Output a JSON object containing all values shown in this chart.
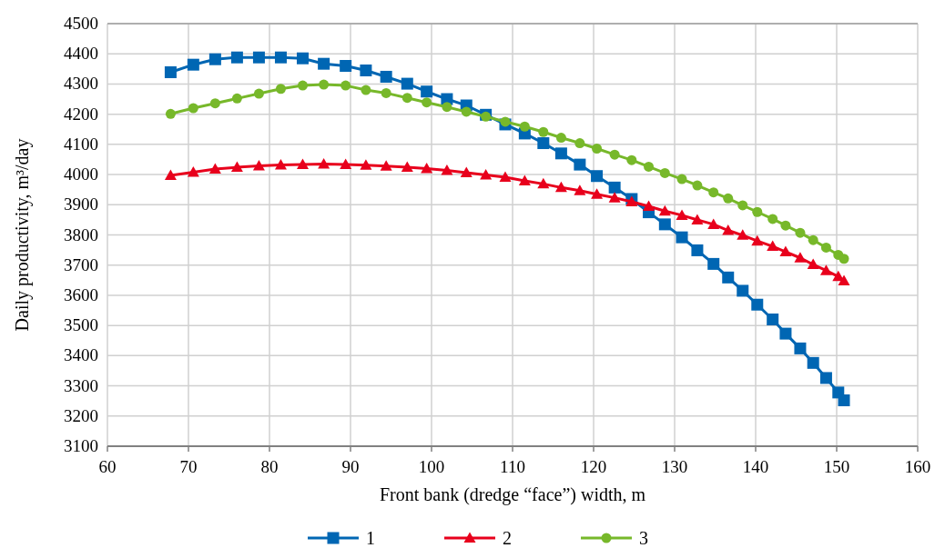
{
  "chart_data": {
    "type": "line",
    "xlabel": "Front bank (dredge “face”) width, m",
    "ylabel": "Daily productivity, m³/day",
    "x": [
      67.8,
      70.6,
      73.3,
      76.0,
      78.7,
      81.4,
      84.1,
      86.7,
      89.4,
      91.9,
      94.4,
      97.0,
      99.4,
      101.9,
      104.3,
      106.7,
      109.1,
      111.5,
      113.8,
      116.0,
      118.3,
      120.4,
      122.6,
      124.7,
      126.8,
      128.8,
      130.9,
      132.8,
      134.8,
      136.6,
      138.4,
      140.2,
      142.1,
      143.7,
      145.5,
      147.1,
      148.7,
      150.2,
      150.9
    ],
    "series": [
      {
        "name": "1",
        "color": "#0066b3",
        "marker": "square",
        "values": [
          4339,
          4364,
          4382,
          4388,
          4388,
          4388,
          4385,
          4367,
          4360,
          4345,
          4324,
          4301,
          4275,
          4250,
          4229,
          4198,
          4166,
          4136,
          4104,
          4070,
          4033,
          3995,
          3957,
          3919,
          3875,
          3835,
          3792,
          3749,
          3704,
          3659,
          3615,
          3569,
          3520,
          3473,
          3424,
          3376,
          3326,
          3278,
          3252
        ]
      },
      {
        "name": "2",
        "color": "#e8001c",
        "marker": "triangle",
        "values": [
          3997,
          4008,
          4018,
          4024,
          4029,
          4032,
          4033,
          4035,
          4033,
          4031,
          4028,
          4024,
          4020,
          4014,
          4006,
          3999,
          3991,
          3979,
          3969,
          3957,
          3947,
          3935,
          3923,
          3910,
          3895,
          3879,
          3865,
          3850,
          3835,
          3815,
          3799,
          3780,
          3762,
          3744,
          3724,
          3702,
          3682,
          3662,
          3648
        ]
      },
      {
        "name": "3",
        "color": "#77b82a",
        "marker": "circle",
        "values": [
          4201,
          4220,
          4236,
          4252,
          4268,
          4284,
          4295,
          4298,
          4295,
          4280,
          4270,
          4254,
          4239,
          4224,
          4208,
          4192,
          4175,
          4159,
          4141,
          4122,
          4104,
          4086,
          4066,
          4048,
          4026,
          4005,
          3985,
          3964,
          3941,
          3921,
          3898,
          3876,
          3853,
          3831,
          3807,
          3783,
          3758,
          3734,
          3721
        ]
      }
    ],
    "xlim": [
      60,
      160
    ],
    "xticks": [
      60,
      70,
      80,
      90,
      100,
      110,
      120,
      130,
      140,
      150,
      160
    ],
    "ylim": [
      3100,
      4500
    ],
    "yticks": [
      3100,
      3200,
      3300,
      3400,
      3500,
      3600,
      3700,
      3800,
      3900,
      4000,
      4100,
      4200,
      4300,
      4400,
      4500
    ],
    "grid": true,
    "legend": "bottom"
  }
}
